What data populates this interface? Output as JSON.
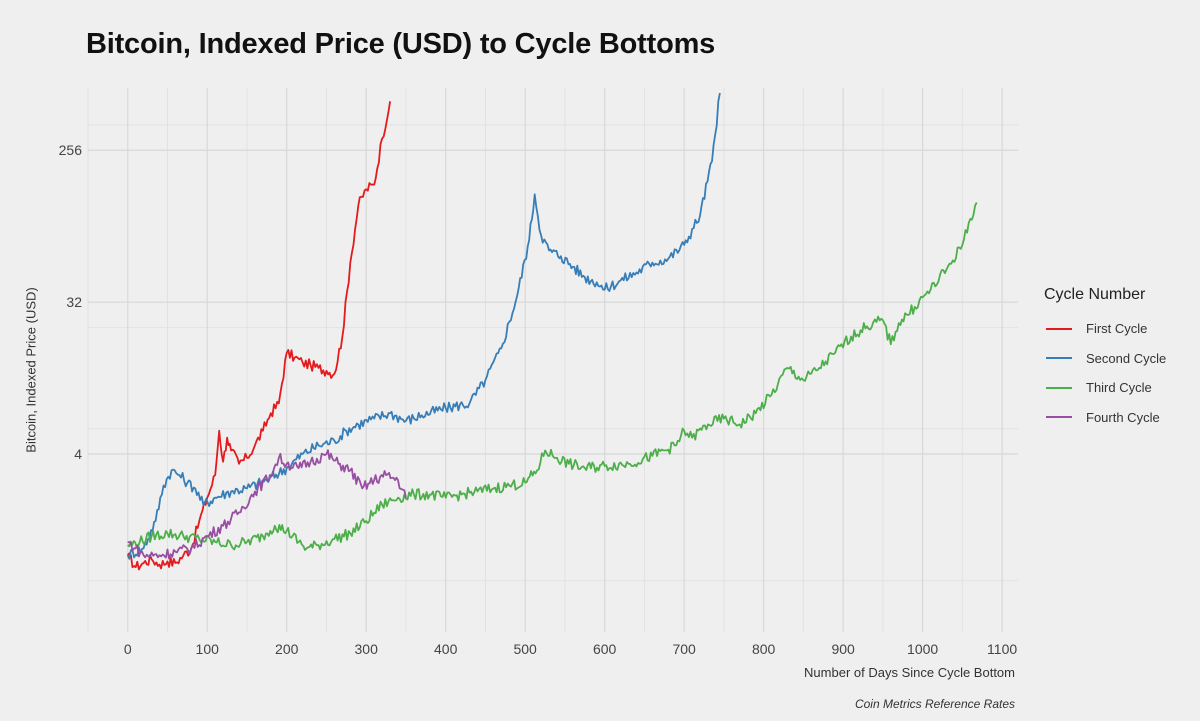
{
  "chart_data": {
    "type": "line",
    "title": "Bitcoin, Indexed Price (USD) to Cycle Bottoms",
    "xlabel": "Number of Days Since Cycle Bottom",
    "ylabel": "Bitcoin, Indexed Price (USD)",
    "caption": "Coin Metrics Reference Rates",
    "x_scale": "linear",
    "y_scale": "log2",
    "xlim": [
      -50,
      1120
    ],
    "ylim": [
      0.35,
      600
    ],
    "x_ticks": [
      0,
      100,
      200,
      300,
      400,
      500,
      600,
      700,
      800,
      900,
      1000,
      1100
    ],
    "y_ticks": [
      4,
      32,
      256
    ],
    "grid": true,
    "legend_title": "Cycle Number",
    "legend_position": "right",
    "series": [
      {
        "name": "First Cycle",
        "color": "#e41a1c",
        "x": [
          0,
          10,
          20,
          30,
          40,
          50,
          60,
          70,
          80,
          90,
          100,
          110,
          115,
          120,
          125,
          130,
          140,
          150,
          160,
          170,
          180,
          190,
          200,
          210,
          220,
          230,
          240,
          250,
          260,
          270,
          280,
          290,
          300,
          310,
          320,
          330
        ],
        "y": [
          1.0,
          0.85,
          0.9,
          0.95,
          0.88,
          0.92,
          0.9,
          1.0,
          1.1,
          1.6,
          2.2,
          3.0,
          5.5,
          3.6,
          5.0,
          4.2,
          3.5,
          3.8,
          4.5,
          5.5,
          7.0,
          8.0,
          16.0,
          15.0,
          14.0,
          13.5,
          13.0,
          12.5,
          12.0,
          20.0,
          55.0,
          120.0,
          150.0,
          160.0,
          300.0,
          500.0
        ]
      },
      {
        "name": "Second Cycle",
        "color": "#377eb8",
        "x": [
          0,
          20,
          35,
          45,
          55,
          65,
          75,
          85,
          95,
          110,
          130,
          150,
          175,
          200,
          220,
          240,
          260,
          275,
          290,
          310,
          330,
          350,
          370,
          400,
          430,
          450,
          470,
          490,
          505,
          512,
          520,
          530,
          545,
          560,
          575,
          590,
          600,
          620,
          640,
          660,
          680,
          700,
          720,
          735,
          745
        ],
        "y": [
          1.0,
          1.1,
          1.6,
          2.6,
          3.2,
          3.0,
          2.7,
          2.5,
          2.0,
          2.2,
          2.4,
          2.5,
          2.8,
          3.3,
          4.0,
          4.5,
          4.8,
          5.5,
          6.0,
          6.5,
          7.0,
          6.3,
          6.8,
          7.5,
          8.0,
          11.0,
          17.0,
          35.0,
          75.0,
          140.0,
          80.0,
          65.0,
          60.0,
          52.0,
          45.0,
          42.0,
          38.0,
          43.0,
          48.0,
          55.0,
          58.0,
          70.0,
          105.0,
          220.0,
          560.0
        ]
      },
      {
        "name": "Third Cycle",
        "color": "#4daf4a",
        "x": [
          0,
          15,
          30,
          50,
          70,
          90,
          110,
          130,
          150,
          170,
          185,
          200,
          215,
          225,
          240,
          260,
          280,
          300,
          320,
          340,
          360,
          380,
          400,
          420,
          440,
          460,
          480,
          500,
          515,
          525,
          540,
          555,
          575,
          600,
          630,
          660,
          690,
          700,
          710,
          730,
          750,
          770,
          790,
          810,
          830,
          850,
          870,
          890,
          910,
          930,
          950,
          960,
          970,
          990,
          1010,
          1030,
          1050,
          1060,
          1068
        ],
        "y": [
          1.15,
          1.2,
          1.3,
          1.35,
          1.3,
          1.25,
          1.2,
          1.15,
          1.2,
          1.3,
          1.5,
          1.4,
          1.2,
          1.1,
          1.15,
          1.25,
          1.35,
          1.6,
          2.0,
          2.2,
          2.3,
          2.3,
          2.2,
          2.3,
          2.4,
          2.5,
          2.6,
          2.7,
          3.2,
          4.2,
          3.8,
          3.5,
          3.3,
          3.4,
          3.5,
          3.9,
          4.5,
          5.5,
          5.0,
          6.0,
          6.5,
          6.0,
          7.0,
          9.0,
          13.0,
          11.0,
          13.0,
          16.0,
          20.0,
          23.0,
          25.0,
          18.0,
          24.0,
          30.0,
          38.0,
          50.0,
          70.0,
          100.0,
          125.0
        ]
      },
      {
        "name": "Fourth Cycle",
        "color": "#984ea3",
        "x": [
          0,
          10,
          20,
          40,
          60,
          80,
          100,
          120,
          140,
          160,
          180,
          190,
          200,
          215,
          230,
          250,
          265,
          280,
          295,
          310,
          325,
          340,
          350
        ],
        "y": [
          1.2,
          1.1,
          1.0,
          1.0,
          1.05,
          1.1,
          1.3,
          1.5,
          1.8,
          2.4,
          3.0,
          3.8,
          3.5,
          3.3,
          3.6,
          4.0,
          3.5,
          3.2,
          2.5,
          2.8,
          3.0,
          2.8,
          2.2
        ]
      }
    ]
  }
}
